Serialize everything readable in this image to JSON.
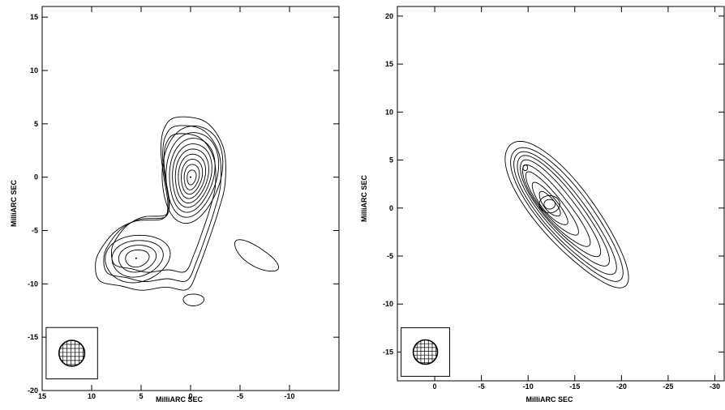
{
  "chart_data": [
    {
      "type": "contour",
      "xlabel": "MilliARC SEC",
      "ylabel": "MilliARC SEC",
      "xlim": [
        15,
        -15
      ],
      "ylim": [
        -20,
        16
      ],
      "x_ticks": [
        15,
        10,
        5,
        0,
        -5,
        -10
      ],
      "y_ticks": [
        15,
        10,
        5,
        0,
        -5,
        -10,
        -15,
        -20
      ],
      "beam": {
        "center": [
          12,
          -16.5
        ],
        "radius": 1.3
      },
      "components": [
        {
          "name": "core",
          "center": [
            0,
            0
          ],
          "peak_marker": [
            0,
            0
          ],
          "levels": 10
        },
        {
          "name": "south-east blob",
          "center": [
            5.5,
            -7.5
          ],
          "peak_marker": [
            5.5,
            -7.6
          ],
          "levels": 6
        },
        {
          "name": "south-west island",
          "center": [
            -6.5,
            -7.5
          ],
          "levels": 1
        },
        {
          "name": "south island",
          "center": [
            -0.3,
            -11.5
          ],
          "levels": 1
        }
      ],
      "grid": false
    },
    {
      "type": "contour",
      "xlabel": "MilliARC SEC",
      "ylabel": "MilliARC SEC",
      "xlim": [
        4,
        -31
      ],
      "ylim": [
        -18,
        21
      ],
      "x_ticks": [
        0,
        -5,
        -10,
        -15,
        -20,
        -25,
        -30
      ],
      "y_ticks": [
        20,
        15,
        10,
        5,
        0,
        -5,
        -10,
        -15
      ],
      "beam": {
        "center": [
          1,
          -15
        ],
        "radius": 1.3
      },
      "components": [
        {
          "name": "elongated jet",
          "center": [
            -14,
            -0.5
          ],
          "position_angle_deg": 50,
          "levels": 9
        },
        {
          "name": "peak",
          "center": [
            -12.3,
            0.4
          ],
          "levels": 3
        },
        {
          "name": "north-east knot",
          "center": [
            -9.7,
            4.2
          ],
          "levels": 1
        }
      ],
      "grid": false
    }
  ]
}
